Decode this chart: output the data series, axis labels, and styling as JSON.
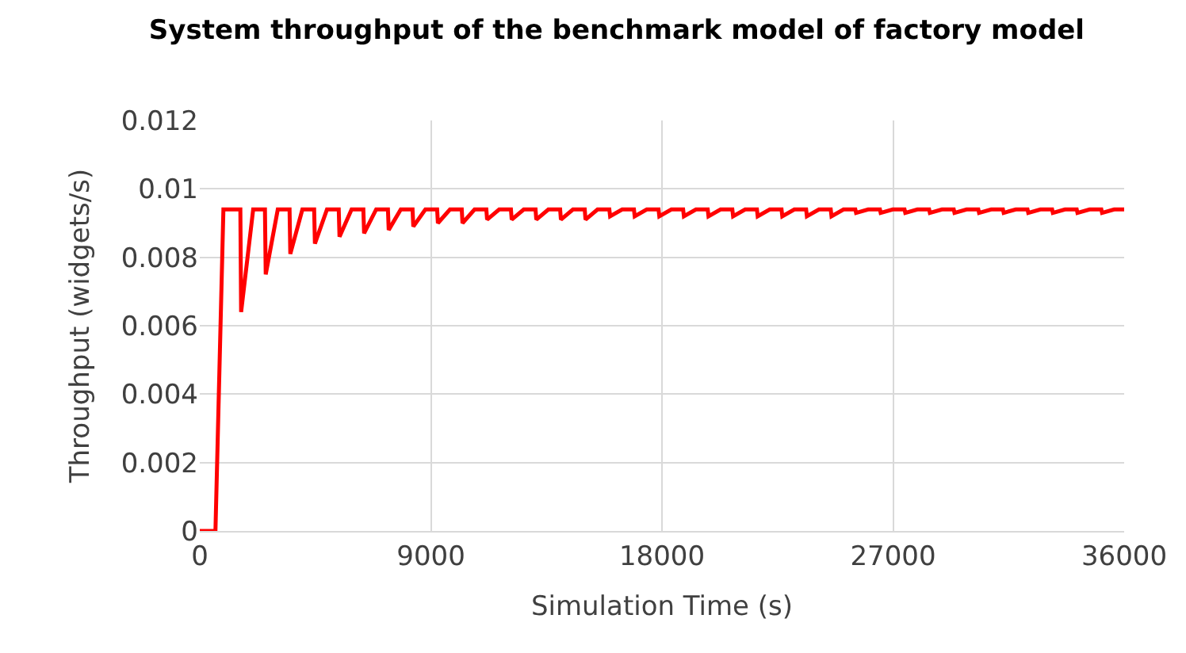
{
  "chart_data": {
    "type": "line",
    "title": "System throughput of the benchmark model of factory model",
    "xlabel": "Simulation Time (s)",
    "ylabel": "Throughput (widgets/s)",
    "xlim": [
      0,
      36000
    ],
    "xticks": [
      0,
      9000,
      18000,
      27000,
      36000
    ],
    "ylim": [
      0,
      0.012
    ],
    "yticks": [
      0,
      0.002,
      0.004,
      0.006,
      0.008,
      0.01,
      0.012
    ],
    "grid": true,
    "marker": "none",
    "line_style": "solid",
    "x": [
      0,
      610,
      920,
      1580,
      1610,
      2080,
      2538,
      2568,
      3038,
      3496,
      3526,
      3996,
      4454,
      4484,
      4954,
      5412,
      5442,
      5912,
      6370,
      6400,
      6870,
      7328,
      7358,
      7828,
      8286,
      8316,
      8786,
      9244,
      9274,
      9744,
      10202,
      10232,
      10702,
      11160,
      11190,
      11660,
      12118,
      12148,
      12618,
      13076,
      13106,
      13576,
      14034,
      14064,
      14534,
      14992,
      15022,
      15492,
      15950,
      15980,
      16450,
      16908,
      16938,
      17408,
      17866,
      17896,
      18366,
      18824,
      18854,
      19324,
      19782,
      19812,
      20282,
      20740,
      20770,
      21240,
      21698,
      21728,
      22198,
      22656,
      22686,
      23156,
      23614,
      23644,
      24114,
      24572,
      24602,
      25072,
      25530,
      25560,
      26030,
      26488,
      26518,
      26988,
      27446,
      27476,
      27946,
      28404,
      28434,
      28904,
      29362,
      29392,
      29862,
      30320,
      30350,
      30820,
      31278,
      31308,
      31778,
      32236,
      32266,
      32736,
      33194,
      33224,
      33694,
      34152,
      34182,
      34652,
      35110,
      35140,
      35610,
      36000
    ],
    "series": [
      {
        "color": "#ff0000",
        "values": [
          0,
          0,
          0.0094,
          0.0094,
          0.0064,
          0.0094,
          0.0094,
          0.0075,
          0.0094,
          0.0094,
          0.0081,
          0.0094,
          0.0094,
          0.0084,
          0.0094,
          0.0094,
          0.0086,
          0.0094,
          0.0094,
          0.0087,
          0.0094,
          0.0094,
          0.0088,
          0.0094,
          0.0094,
          0.0089,
          0.0094,
          0.0094,
          0.009,
          0.0094,
          0.0094,
          0.009,
          0.0094,
          0.0094,
          0.0091,
          0.0094,
          0.0094,
          0.0091,
          0.0094,
          0.0094,
          0.0091,
          0.0094,
          0.0094,
          0.0091,
          0.0094,
          0.0094,
          0.0091,
          0.0094,
          0.0094,
          0.0092,
          0.0094,
          0.0094,
          0.0092,
          0.0094,
          0.0094,
          0.0092,
          0.0094,
          0.0094,
          0.0092,
          0.0094,
          0.0094,
          0.0092,
          0.0094,
          0.0094,
          0.0092,
          0.0094,
          0.0094,
          0.0092,
          0.0094,
          0.0094,
          0.0092,
          0.0094,
          0.0094,
          0.0092,
          0.0094,
          0.0094,
          0.0092,
          0.0094,
          0.0094,
          0.0093,
          0.0094,
          0.0094,
          0.0093,
          0.0094,
          0.0094,
          0.0093,
          0.0094,
          0.0094,
          0.0093,
          0.0094,
          0.0094,
          0.0093,
          0.0094,
          0.0094,
          0.0093,
          0.0094,
          0.0094,
          0.0093,
          0.0094,
          0.0094,
          0.0093,
          0.0094,
          0.0094,
          0.0093,
          0.0094,
          0.0094,
          0.0093,
          0.0094,
          0.0094,
          0.0093,
          0.0094,
          0.0094
        ]
      }
    ]
  }
}
